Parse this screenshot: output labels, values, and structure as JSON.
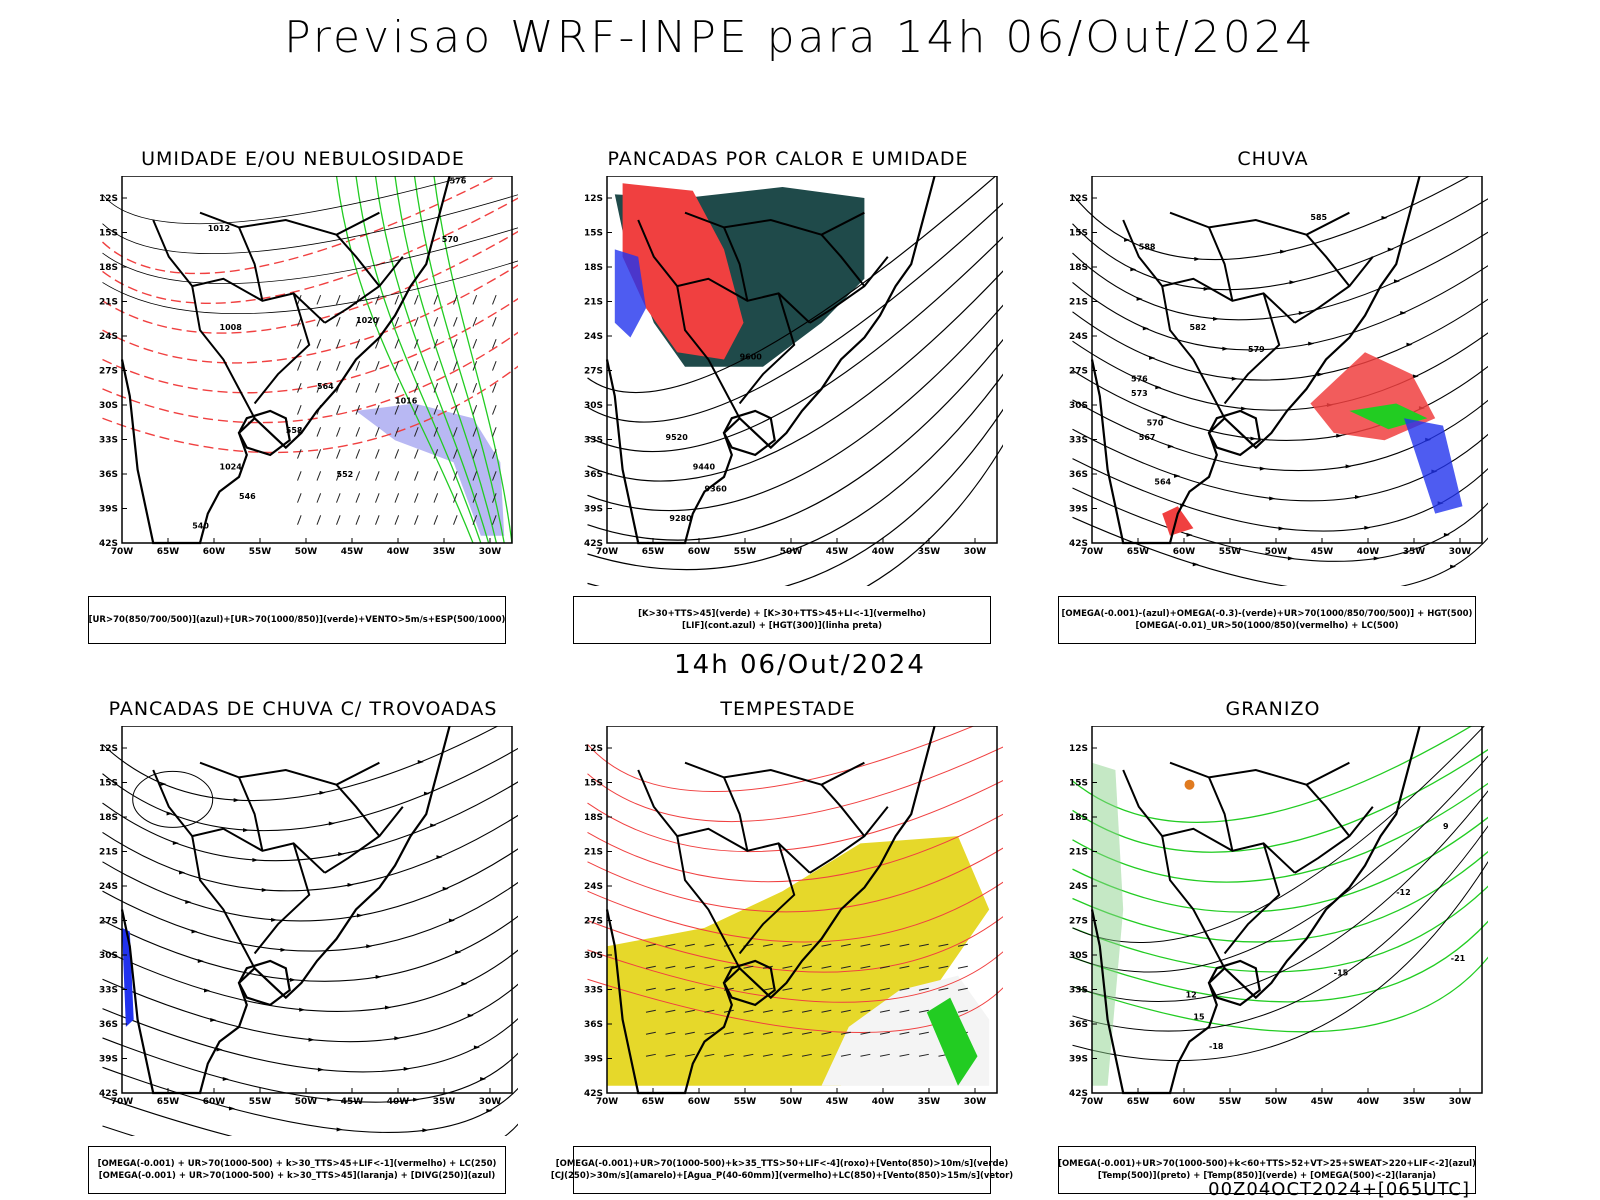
{
  "header": {
    "title": "Previsao WRF-INPE  para 14h 06/Out/2024"
  },
  "mid_date": "14h 06/Out/2024",
  "footer": "00Z04OCT2024+[065UTC]",
  "axes": {
    "lat_labels": [
      "12S",
      "15S",
      "18S",
      "21S",
      "24S",
      "27S",
      "30S",
      "33S",
      "36S",
      "39S",
      "42S"
    ],
    "lon_labels": [
      "70W",
      "65W",
      "60W",
      "55W",
      "50W",
      "45W",
      "40W",
      "35W",
      "30W"
    ]
  },
  "colors": {
    "red": "#f04040",
    "green": "#22cc22",
    "blue": "#2233ee",
    "darkteal": "#1f4a4a",
    "yellow": "#e6d82a",
    "lavender": "#9a9aee",
    "orange": "#e07b20"
  },
  "panels": [
    {
      "id": "umidade",
      "title": "UMIDADE E/OU NEBULOSIDADE",
      "caption": [
        "[UR>70(850/700/500)](azul)+[UR>70(1000/850)](verde)+VENTO>5m/s+ESP(500/1000)"
      ],
      "labels": [
        "1012",
        "1016",
        "1008",
        "576",
        "570",
        "564",
        "558",
        "552",
        "546",
        "540",
        "1020",
        "1024"
      ]
    },
    {
      "id": "pancadas-calor",
      "title": "PANCADAS POR CALOR E UMIDADE",
      "caption": [
        "[K>30+TTS>45](verde) + [K>30+TTS>45+LI<-1](vermelho)",
        "[LIF](cont.azul) + [HGT(300)](linha preta)"
      ],
      "labels": [
        "9600",
        "9520",
        "9440",
        "9360",
        "9280"
      ]
    },
    {
      "id": "chuva",
      "title": "CHUVA",
      "caption": [
        "[OMEGA(-0.001)-(azul)+OMEGA(-0.3)-(verde)+UR>70(1000/850/700/500)] + HGT(500)",
        "[OMEGA(-0.01)_UR>50(1000/850)(vermelho) + LC(500)"
      ],
      "labels": [
        "585",
        "588",
        "582",
        "579",
        "576",
        "573",
        "570",
        "567",
        "564"
      ]
    },
    {
      "id": "trovoadas",
      "title": "PANCADAS DE CHUVA C/ TROVOADAS",
      "caption": [
        "[OMEGA(-0.001) + UR>70(1000-500) + k>30_TTS>45+LIF<-1](vermelho) + LC(250)",
        "[OMEGA(-0.001) + UR>70(1000-500) + k>30_TTS>45](laranja) + [DIVG(250)](azul)"
      ],
      "labels": []
    },
    {
      "id": "tempestade",
      "title": "TEMPESTADE",
      "caption": [
        "[OMEGA(-0.001)+UR>70(1000-500)+k>35_TTS>50+LIF<-4](roxo)+[Vento(850)>10m/s](verde)",
        "[CJ(250)>30m/s](amarelo)+[Agua_P(40-60mm)](vermelho)+LC(850)+[Vento(850)>15m/s](vetor)"
      ],
      "labels": []
    },
    {
      "id": "granizo",
      "title": "GRANIZO",
      "caption": [
        "[OMEGA(-0.001)+UR>70(1000-500)+k<60+TTS>52+VT>25+SWEAT>220+LIF<-2](azul)",
        "[Temp(500)](preto) + [Temp(850)](verde) + [OMEGA(500)<-2](laranja)"
      ],
      "labels": [
        "-12",
        "-15",
        "-18",
        "-21",
        "12",
        "15",
        "9"
      ]
    }
  ]
}
